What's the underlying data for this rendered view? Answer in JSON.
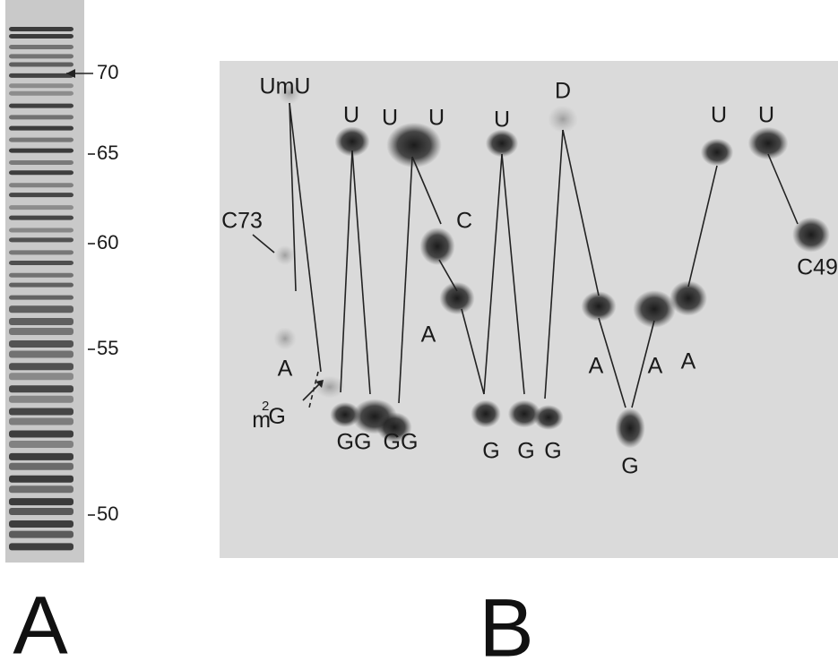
{
  "gel": {
    "markers": [
      "70",
      "65",
      "60",
      "55",
      "50"
    ]
  },
  "panels": {
    "a": "A",
    "b": "B"
  },
  "spots": {
    "umu": "UmU",
    "u1": "U",
    "u2": "U",
    "u3": "U",
    "u4": "U",
    "d": "D",
    "u5": "U",
    "u6": "U",
    "c73": "C73",
    "c": "C",
    "c49": "C49",
    "a1": "A",
    "a2": "A",
    "a3": "A",
    "a4": "A",
    "a5": "A",
    "m2g": {
      "m": "m",
      "sup": "2",
      "g": "G"
    },
    "gg1": "GG",
    "gg2": "GG",
    "g1": "G",
    "g2": "G",
    "g3": "G",
    "g4": "G"
  }
}
